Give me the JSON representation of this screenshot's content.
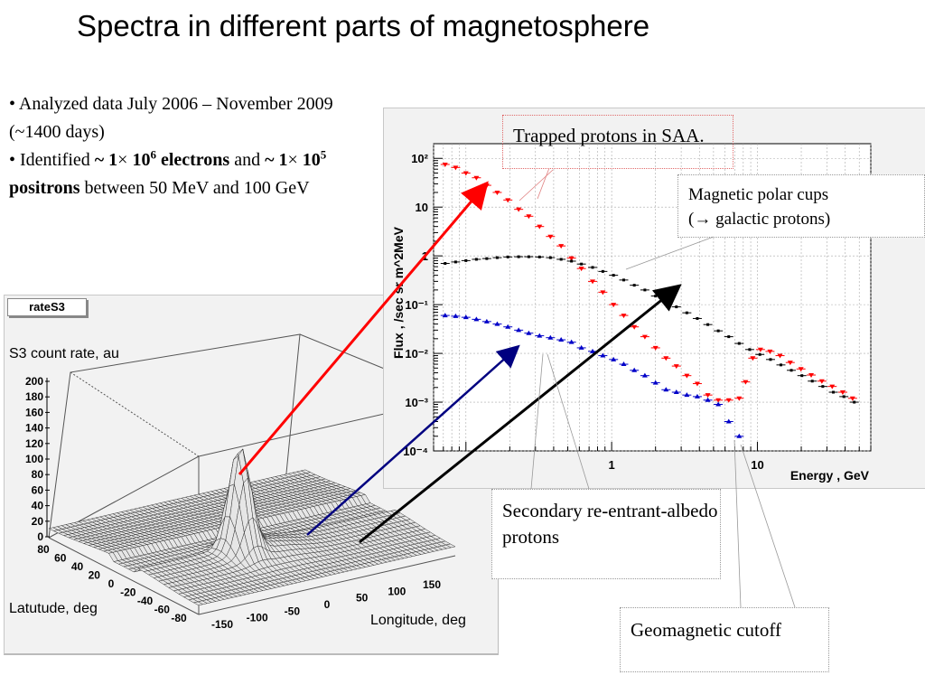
{
  "slide": {
    "title": "Spectra in different parts of magnetosphere",
    "bullet1_a": "• Analyzed data July 2006 – November 2009 (~1400 days)",
    "bullet2_a": "• Identified ",
    "bullet2_b": "~ 1",
    "bullet2_times1": "×",
    "bullet2_c": " 10",
    "bullet2_sup1": "6",
    "bullet2_d": " electrons",
    "bullet2_e": " and ",
    "bullet2_f": "~ 1",
    "bullet2_times2": "×",
    "bullet2_g": " 10",
    "bullet2_sup2": "5",
    "bullet2_h": " positrons",
    "bullet2_i": " between 50 MeV and 100 GeV"
  },
  "callouts": {
    "trapped": "Trapped protons in SAA.",
    "polar_line1": "Magnetic polar cups",
    "polar_line2": "(→ galactic protons)",
    "secondary": "Secondary re-entrant-albedo protons",
    "cutoff": "Geomagnetic cutoff"
  },
  "colors": {
    "red": "#ff0000",
    "blue": "#0000c8",
    "black": "#000000",
    "navy_arrow": "#000080"
  },
  "chart_data": [
    {
      "type": "scatter",
      "box_label": "rateS3",
      "zlabel": "S3 count rate, au",
      "xlabel": "Longitude, deg",
      "ylabel": "Latutude, deg",
      "x_ticks": [
        "-150",
        "-100",
        "-50",
        "0",
        "50",
        "100",
        "150"
      ],
      "y_ticks": [
        "80",
        "60",
        "40",
        "20",
        "0",
        "-20",
        "-40",
        "-60",
        "-80"
      ],
      "z_ticks": [
        "200",
        "180",
        "160",
        "140",
        "120",
        "100",
        "80",
        "60",
        "40",
        "20",
        "0"
      ],
      "xlim": [
        -180,
        180
      ],
      "ylim": [
        -80,
        80
      ],
      "zlim": [
        0,
        200
      ],
      "peak": {
        "lon": -50,
        "lat": -25,
        "value": 140
      }
    },
    {
      "type": "scatter",
      "title": "",
      "xlabel": "Energy , GeV",
      "ylabel": "Flux , /sec sr m^2MeV",
      "x_log": true,
      "y_log": true,
      "xlim": [
        0.06,
        60
      ],
      "ylim": [
        0.0001,
        200
      ],
      "x_tick_labels": [
        "1",
        "10"
      ],
      "y_tick_labels": [
        "10²",
        "10",
        "1",
        "10⁻¹",
        "10⁻²",
        "10⁻³",
        "10⁻⁴"
      ],
      "grid": true,
      "series": [
        {
          "color": "#ff0000",
          "marker": "triangle-down",
          "x": [
            0.072,
            0.085,
            0.1,
            0.118,
            0.139,
            0.164,
            0.194,
            0.23,
            0.27,
            0.32,
            0.38,
            0.45,
            0.53,
            0.62,
            0.74,
            0.87,
            1.03,
            1.21,
            1.43,
            1.69,
            2.0,
            2.36,
            2.78,
            3.28,
            3.87,
            4.57,
            5.39,
            6.36,
            7.5,
            8.3,
            9.3,
            10.5,
            12.2,
            14.3,
            16.8,
            19.9,
            23.4,
            27.7,
            32.6,
            38.5,
            45.0
          ],
          "y": [
            75,
            65,
            50,
            40,
            28,
            20,
            14,
            9,
            6.5,
            4,
            2.5,
            1.6,
            0.9,
            0.55,
            0.3,
            0.18,
            0.1,
            0.06,
            0.035,
            0.022,
            0.013,
            0.008,
            0.0055,
            0.0035,
            0.0024,
            0.0014,
            0.0011,
            0.0011,
            0.0012,
            0.0026,
            0.008,
            0.012,
            0.011,
            0.009,
            0.0065,
            0.0048,
            0.0036,
            0.0027,
            0.0021,
            0.0016,
            0.0012
          ]
        },
        {
          "color": "#000000",
          "marker": "square",
          "x": [
            0.072,
            0.085,
            0.1,
            0.118,
            0.139,
            0.164,
            0.194,
            0.23,
            0.27,
            0.32,
            0.38,
            0.45,
            0.53,
            0.62,
            0.74,
            0.87,
            1.03,
            1.21,
            1.43,
            1.69,
            2.0,
            2.36,
            2.78,
            3.28,
            3.87,
            4.57,
            5.39,
            6.36,
            7.5,
            8.85,
            10.4,
            12.3,
            14.5,
            17.1,
            20.2,
            23.8,
            28.1,
            33.2,
            39.2,
            46.2
          ],
          "y": [
            0.7,
            0.75,
            0.8,
            0.85,
            0.88,
            0.92,
            0.95,
            0.96,
            0.96,
            0.95,
            0.92,
            0.85,
            0.78,
            0.68,
            0.58,
            0.48,
            0.4,
            0.32,
            0.25,
            0.2,
            0.15,
            0.115,
            0.09,
            0.068,
            0.052,
            0.039,
            0.029,
            0.022,
            0.016,
            0.012,
            0.0095,
            0.0075,
            0.0058,
            0.0045,
            0.0035,
            0.0027,
            0.0021,
            0.0016,
            0.0013,
            0.001
          ]
        },
        {
          "color": "#0000c8",
          "marker": "triangle-up",
          "x": [
            0.072,
            0.085,
            0.1,
            0.118,
            0.139,
            0.164,
            0.194,
            0.23,
            0.27,
            0.32,
            0.38,
            0.45,
            0.53,
            0.62,
            0.74,
            0.87,
            1.03,
            1.21,
            1.43,
            1.69,
            2.0,
            2.36,
            2.78,
            3.28,
            3.87,
            4.57,
            5.39,
            6.36,
            7.5
          ],
          "y": [
            0.06,
            0.058,
            0.055,
            0.05,
            0.045,
            0.04,
            0.035,
            0.03,
            0.026,
            0.023,
            0.021,
            0.019,
            0.017,
            0.013,
            0.011,
            0.009,
            0.0075,
            0.006,
            0.0045,
            0.0035,
            0.0025,
            0.0018,
            0.0016,
            0.0014,
            0.0013,
            0.0011,
            0.0009,
            0.0004,
            0.0002
          ]
        }
      ]
    }
  ]
}
